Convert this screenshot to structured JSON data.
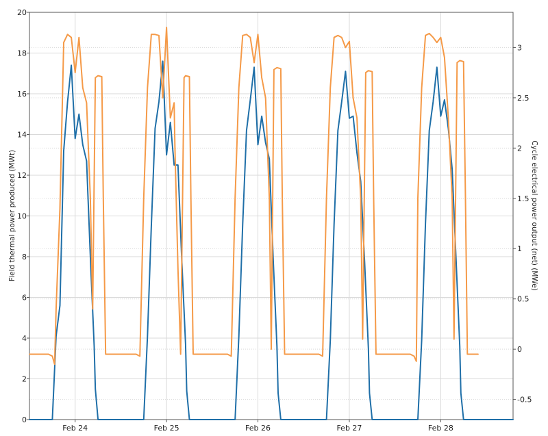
{
  "chart_data": {
    "type": "line",
    "title": "",
    "x_unit": "hour",
    "x_start": "Feb 23 18:00",
    "xlim_hours": [
      0,
      127
    ],
    "x_ticks": [
      {
        "label": "Feb 24",
        "hour": 12
      },
      {
        "label": "Feb 25",
        "hour": 36
      },
      {
        "label": "Feb 26",
        "hour": 60
      },
      {
        "label": "Feb 27",
        "hour": 84
      },
      {
        "label": "Feb 28",
        "hour": 108
      }
    ],
    "y_left": {
      "label": "Field thermal power produced (MWt)",
      "lim": [
        0,
        20
      ],
      "ticks": [
        "0",
        "2",
        "4",
        "6",
        "8",
        "10",
        "12",
        "14",
        "16",
        "18",
        "20"
      ]
    },
    "y_right": {
      "label": "Cycle electrical power output (net) (MWe)",
      "lim": [
        -0.7,
        3.35
      ],
      "ticks": [
        {
          "label": "-0.5",
          "value": -0.5
        },
        {
          "label": "0",
          "value": 0
        },
        {
          "label": "0.5",
          "value": 0.5
        },
        {
          "label": "1",
          "value": 1
        },
        {
          "label": "1.5",
          "value": 1.5
        },
        {
          "label": "2",
          "value": 2
        },
        {
          "label": "2.5",
          "value": 2.5
        },
        {
          "label": "3",
          "value": 3
        }
      ]
    },
    "series": [
      {
        "name": "",
        "axis": "left",
        "color": "#1f6fa8",
        "points": [
          [
            0,
            0
          ],
          [
            1,
            0
          ],
          [
            2,
            0
          ],
          [
            3,
            0
          ],
          [
            4,
            0
          ],
          [
            5,
            0
          ],
          [
            6,
            0
          ],
          [
            7,
            4.1
          ],
          [
            8,
            5.6
          ],
          [
            9,
            13.2
          ],
          [
            10,
            15.6
          ],
          [
            11,
            17.4
          ],
          [
            12,
            13.8
          ],
          [
            13,
            15.0
          ],
          [
            14,
            13.5
          ],
          [
            15,
            12.7
          ],
          [
            16,
            8.0
          ],
          [
            17,
            3.6
          ],
          [
            17.3,
            1.5
          ],
          [
            18,
            0
          ],
          [
            19,
            0
          ],
          [
            20,
            0
          ],
          [
            21,
            0
          ],
          [
            22,
            0
          ],
          [
            23,
            0
          ],
          [
            24,
            0
          ],
          [
            25,
            0
          ],
          [
            26,
            0
          ],
          [
            27,
            0
          ],
          [
            28,
            0
          ],
          [
            29,
            0
          ],
          [
            30,
            0
          ],
          [
            31,
            4.1
          ],
          [
            32,
            9.5
          ],
          [
            33,
            14.3
          ],
          [
            34,
            15.6
          ],
          [
            35,
            17.6
          ],
          [
            36,
            13.0
          ],
          [
            37,
            14.6
          ],
          [
            38,
            12.5
          ],
          [
            39,
            12.5
          ],
          [
            40,
            7.8
          ],
          [
            41,
            3.7
          ],
          [
            41.3,
            1.4
          ],
          [
            42,
            0
          ],
          [
            43,
            0
          ],
          [
            44,
            0
          ],
          [
            45,
            0
          ],
          [
            46,
            0
          ],
          [
            47,
            0
          ],
          [
            48,
            0
          ],
          [
            49,
            0
          ],
          [
            50,
            0
          ],
          [
            51,
            0
          ],
          [
            52,
            0
          ],
          [
            53,
            0
          ],
          [
            54,
            0
          ],
          [
            55,
            4.1
          ],
          [
            56,
            9.6
          ],
          [
            57,
            14.2
          ],
          [
            58,
            15.7
          ],
          [
            59,
            17.3
          ],
          [
            60,
            13.5
          ],
          [
            61,
            14.9
          ],
          [
            62,
            13.6
          ],
          [
            63,
            12.8
          ],
          [
            64,
            7.9
          ],
          [
            65,
            3.6
          ],
          [
            65.3,
            1.3
          ],
          [
            66,
            0
          ],
          [
            67,
            0
          ],
          [
            68,
            0
          ],
          [
            69,
            0
          ],
          [
            70,
            0
          ],
          [
            71,
            0
          ],
          [
            72,
            0
          ],
          [
            73,
            0
          ],
          [
            74,
            0
          ],
          [
            75,
            0
          ],
          [
            76,
            0
          ],
          [
            77,
            0
          ],
          [
            78,
            0
          ],
          [
            79,
            3.9
          ],
          [
            80,
            9.6
          ],
          [
            81,
            14.2
          ],
          [
            82,
            15.6
          ],
          [
            83,
            17.1
          ],
          [
            84,
            14.8
          ],
          [
            85,
            14.9
          ],
          [
            86,
            13.1
          ],
          [
            87,
            11.7
          ],
          [
            88,
            7.8
          ],
          [
            89,
            3.5
          ],
          [
            89.3,
            1.3
          ],
          [
            90,
            0
          ],
          [
            91,
            0
          ],
          [
            92,
            0
          ],
          [
            93,
            0
          ],
          [
            94,
            0
          ],
          [
            95,
            0
          ],
          [
            96,
            0
          ],
          [
            97,
            0
          ],
          [
            98,
            0
          ],
          [
            99,
            0
          ],
          [
            100,
            0
          ],
          [
            101,
            0
          ],
          [
            102,
            0
          ],
          [
            103,
            3.9
          ],
          [
            104,
            9.6
          ],
          [
            105,
            14.2
          ],
          [
            106,
            15.6
          ],
          [
            107,
            17.3
          ],
          [
            108,
            14.9
          ],
          [
            109,
            15.7
          ],
          [
            110,
            14.3
          ],
          [
            111,
            12.3
          ],
          [
            112,
            8.0
          ],
          [
            113,
            3.6
          ],
          [
            113.3,
            1.3
          ],
          [
            114,
            0
          ],
          [
            115,
            0
          ],
          [
            116,
            0
          ],
          [
            117,
            0
          ],
          [
            118,
            0
          ],
          [
            119,
            0
          ],
          [
            120,
            0
          ],
          [
            121,
            0
          ],
          [
            122,
            0
          ],
          [
            123,
            0
          ],
          [
            124,
            0
          ],
          [
            125,
            0
          ],
          [
            126,
            0
          ],
          [
            127,
            0
          ]
        ]
      },
      {
        "name": "",
        "axis": "right",
        "color": "#f59a48",
        "points": [
          [
            0,
            -0.05
          ],
          [
            1,
            -0.05
          ],
          [
            2,
            -0.05
          ],
          [
            3,
            -0.05
          ],
          [
            4,
            -0.05
          ],
          [
            5,
            -0.05
          ],
          [
            6,
            -0.07
          ],
          [
            6.6,
            -0.15
          ],
          [
            7,
            0.4
          ],
          [
            8,
            1.4
          ],
          [
            9,
            3.05
          ],
          [
            10,
            3.13
          ],
          [
            11,
            3.1
          ],
          [
            12,
            2.75
          ],
          [
            13,
            3.1
          ],
          [
            14,
            2.6
          ],
          [
            15,
            2.45
          ],
          [
            16,
            1.5
          ],
          [
            16.6,
            0.4
          ],
          [
            17.3,
            2.7
          ],
          [
            18,
            2.72
          ],
          [
            19,
            2.71
          ],
          [
            19.4,
            1.5
          ],
          [
            20,
            -0.05
          ],
          [
            21,
            -0.05
          ],
          [
            22,
            -0.05
          ],
          [
            23,
            -0.05
          ],
          [
            24,
            -0.05
          ],
          [
            25,
            -0.05
          ],
          [
            26,
            -0.05
          ],
          [
            27,
            -0.05
          ],
          [
            28,
            -0.05
          ],
          [
            29,
            -0.07
          ],
          [
            30,
            1.5
          ],
          [
            31,
            2.6
          ],
          [
            32,
            3.13
          ],
          [
            33,
            3.13
          ],
          [
            34,
            3.12
          ],
          [
            35,
            2.5
          ],
          [
            36,
            3.2
          ],
          [
            37,
            2.3
          ],
          [
            38,
            2.45
          ],
          [
            38.2,
            2.0
          ],
          [
            39,
            0.8
          ],
          [
            39.7,
            -0.05
          ],
          [
            40.6,
            2.7
          ],
          [
            41,
            2.72
          ],
          [
            42,
            2.71
          ],
          [
            42.4,
            1.5
          ],
          [
            43,
            -0.05
          ],
          [
            44,
            -0.05
          ],
          [
            45,
            -0.05
          ],
          [
            46,
            -0.05
          ],
          [
            47,
            -0.05
          ],
          [
            48,
            -0.05
          ],
          [
            49,
            -0.05
          ],
          [
            50,
            -0.05
          ],
          [
            51,
            -0.05
          ],
          [
            52,
            -0.05
          ],
          [
            53,
            -0.07
          ],
          [
            54,
            1.5
          ],
          [
            55,
            2.6
          ],
          [
            56,
            3.12
          ],
          [
            57,
            3.13
          ],
          [
            58,
            3.1
          ],
          [
            59,
            2.85
          ],
          [
            60,
            3.13
          ],
          [
            61,
            2.7
          ],
          [
            62,
            2.5
          ],
          [
            63,
            1.5
          ],
          [
            63.5,
            0.0
          ],
          [
            64.2,
            2.78
          ],
          [
            65,
            2.8
          ],
          [
            66,
            2.79
          ],
          [
            66.4,
            1.5
          ],
          [
            67,
            -0.05
          ],
          [
            68,
            -0.05
          ],
          [
            69,
            -0.05
          ],
          [
            70,
            -0.05
          ],
          [
            71,
            -0.05
          ],
          [
            72,
            -0.05
          ],
          [
            73,
            -0.05
          ],
          [
            74,
            -0.05
          ],
          [
            75,
            -0.05
          ],
          [
            76,
            -0.05
          ],
          [
            77,
            -0.07
          ],
          [
            78,
            1.5
          ],
          [
            79,
            2.6
          ],
          [
            80,
            3.1
          ],
          [
            81,
            3.12
          ],
          [
            82,
            3.1
          ],
          [
            83,
            3.0
          ],
          [
            84,
            3.06
          ],
          [
            85,
            2.5
          ],
          [
            86,
            2.3
          ],
          [
            87,
            1.5
          ],
          [
            87.5,
            0.1
          ],
          [
            88.3,
            2.75
          ],
          [
            89,
            2.77
          ],
          [
            90,
            2.76
          ],
          [
            90.4,
            1.5
          ],
          [
            91,
            -0.05
          ],
          [
            92,
            -0.05
          ],
          [
            93,
            -0.05
          ],
          [
            94,
            -0.05
          ],
          [
            95,
            -0.05
          ],
          [
            96,
            -0.05
          ],
          [
            97,
            -0.05
          ],
          [
            98,
            -0.05
          ],
          [
            99,
            -0.05
          ],
          [
            100,
            -0.05
          ],
          [
            101,
            -0.07
          ],
          [
            101.6,
            -0.12
          ],
          [
            102,
            1.5
          ],
          [
            103,
            2.6
          ],
          [
            104,
            3.12
          ],
          [
            105,
            3.14
          ],
          [
            106,
            3.1
          ],
          [
            107,
            3.05
          ],
          [
            108,
            3.1
          ],
          [
            109,
            2.9
          ],
          [
            110,
            2.3
          ],
          [
            111,
            1.5
          ],
          [
            111.5,
            0.1
          ],
          [
            112.3,
            2.85
          ],
          [
            113,
            2.87
          ],
          [
            114,
            2.86
          ],
          [
            114.5,
            1.5
          ],
          [
            115,
            -0.05
          ],
          [
            116,
            -0.05
          ],
          [
            117,
            -0.05
          ],
          [
            117.8,
            -0.05
          ]
        ]
      }
    ],
    "grid": true,
    "legend": "none"
  },
  "page": {
    "background": "#ffffff",
    "grid_color": "#d9d9d9"
  }
}
